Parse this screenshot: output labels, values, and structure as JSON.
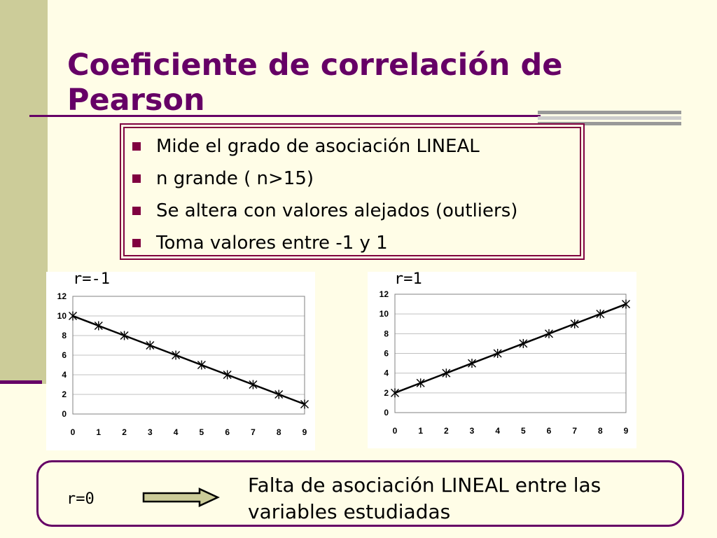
{
  "slide": {
    "title_line1": "Coeficiente de correlación de",
    "title_line2": "Pearson",
    "bullets": [
      "Mide el grado de asociación LINEAL",
      "n grande ( n>15)",
      "Se altera con valores alejados (outliers)",
      "Toma valores entre -1 y 1"
    ],
    "r_zero_label": "r=0",
    "conclusion_line1": "Falta de asociación LINEAL entre las",
    "conclusion_line2": "variables estudiadas"
  },
  "colors": {
    "title": "#660066",
    "accent_band": "#cccc99",
    "arrow_fill": "#cccc99",
    "marker": "#000000"
  },
  "chart_data": [
    {
      "type": "line",
      "title": "r=-1",
      "x": [
        0,
        1,
        2,
        3,
        4,
        5,
        6,
        7,
        8,
        9
      ],
      "series": [
        {
          "values": [
            10,
            9,
            8,
            7,
            6,
            5,
            4,
            3,
            2,
            1
          ]
        }
      ],
      "xticks": [
        0,
        1,
        2,
        3,
        4,
        5,
        6,
        7,
        8,
        9
      ],
      "yticks": [
        0,
        2,
        4,
        6,
        8,
        10,
        12
      ],
      "xlim": [
        0,
        9
      ],
      "ylim": [
        0,
        12
      ],
      "grid": true,
      "marker": "asterisk"
    },
    {
      "type": "line",
      "title": "r=1",
      "x": [
        0,
        1,
        2,
        3,
        4,
        5,
        6,
        7,
        8,
        9
      ],
      "series": [
        {
          "values": [
            2,
            3,
            4,
            5,
            6,
            7,
            8,
            9,
            10,
            11
          ]
        }
      ],
      "xticks": [
        0,
        1,
        2,
        3,
        4,
        5,
        6,
        7,
        8,
        9
      ],
      "yticks": [
        0,
        2,
        4,
        6,
        8,
        10,
        12
      ],
      "xlim": [
        0,
        9
      ],
      "ylim": [
        0,
        12
      ],
      "grid": true,
      "marker": "asterisk"
    }
  ]
}
